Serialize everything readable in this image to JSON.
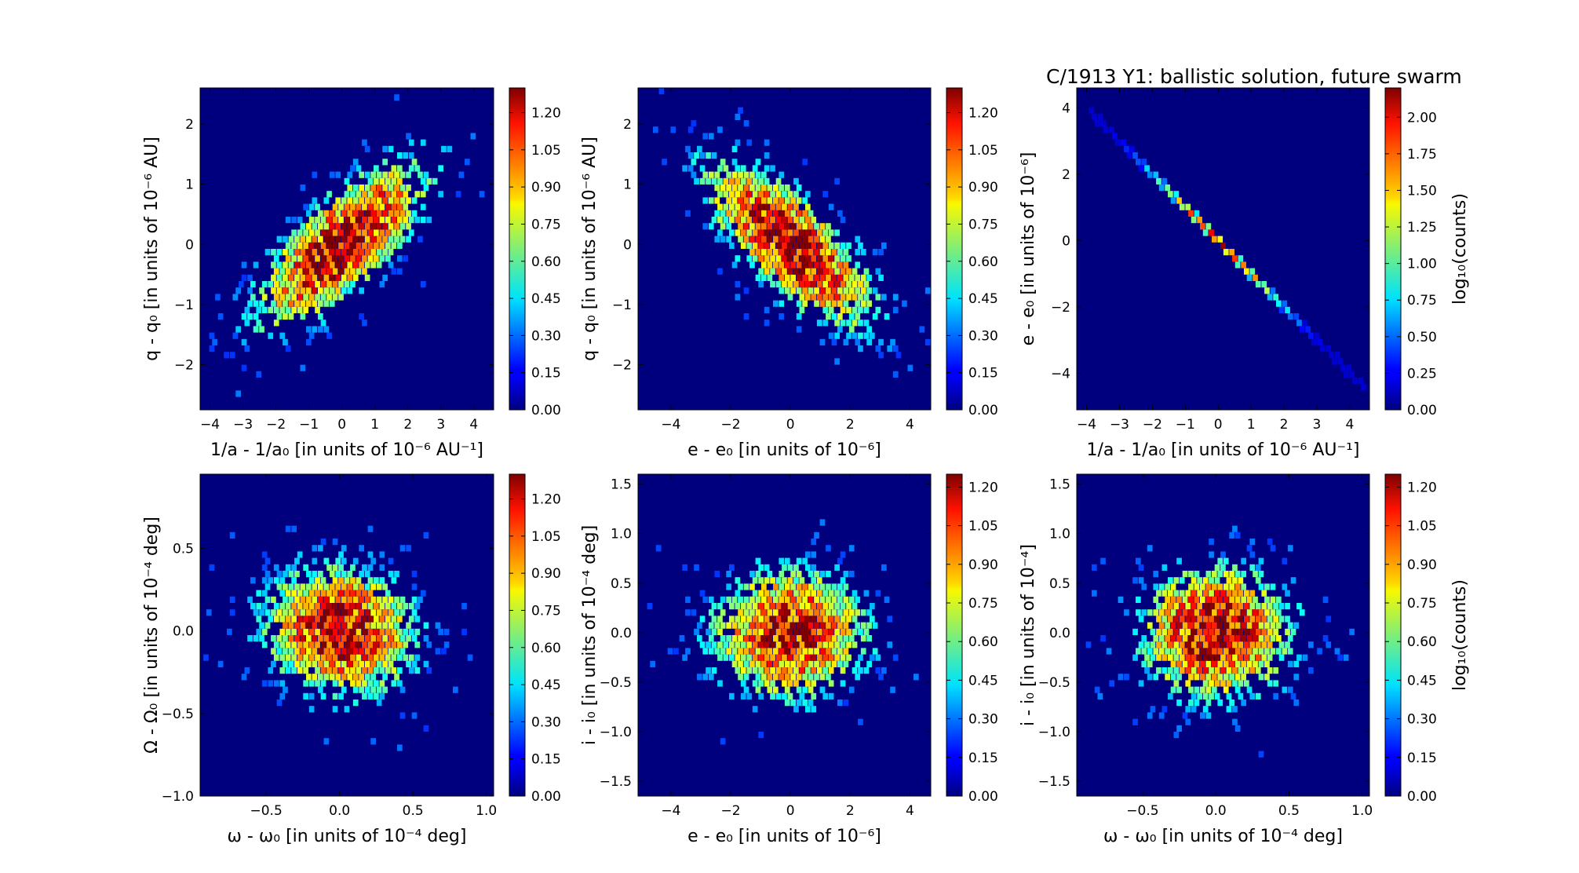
{
  "figure": {
    "title": "C/1913 Y1:  ballistic solution, future swarm"
  },
  "chart_data": [
    {
      "type": "heatmap",
      "subtype": "hexbin",
      "xlabel": "1/a - 1/a₀ [in units of 10⁻⁶ AU⁻¹]",
      "ylabel": "q - q₀ [in units of 10⁻⁶ AU]",
      "xlim": [
        -4.3,
        4.6
      ],
      "ylim": [
        -2.75,
        2.6
      ],
      "xticks": [
        "−4",
        "−3",
        "−2",
        "−1",
        "0",
        "1",
        "2",
        "3",
        "4"
      ],
      "xtick_values": [
        -4,
        -3,
        -2,
        -1,
        0,
        1,
        2,
        3,
        4
      ],
      "yticks": [
        "−2",
        "−1",
        "0",
        "1",
        "2"
      ],
      "ytick_values": [
        -2,
        -1,
        0,
        1,
        2
      ],
      "colorbar": {
        "min": 0.0,
        "max": 1.3,
        "ticks": [
          "0.00",
          "0.15",
          "0.30",
          "0.45",
          "0.60",
          "0.75",
          "0.90",
          "1.05",
          "1.20"
        ],
        "tick_values": [
          0,
          0.15,
          0.3,
          0.45,
          0.6,
          0.75,
          0.9,
          1.05,
          1.2
        ],
        "label": ""
      },
      "distribution": {
        "kind": "bivariate_normal",
        "mean": [
          0,
          0
        ],
        "std": [
          1.5,
          0.8
        ],
        "correlation": 0.75,
        "peak_log10_count": 1.3
      }
    },
    {
      "type": "heatmap",
      "subtype": "hexbin",
      "xlabel": "e - e₀ [in units of 10⁻⁶]",
      "ylabel": "q - q₀ [in units of 10⁻⁶ AU]",
      "xlim": [
        -5.1,
        4.7
      ],
      "ylim": [
        -2.75,
        2.6
      ],
      "xticks": [
        "−4",
        "−2",
        "0",
        "2",
        "4"
      ],
      "xtick_values": [
        -4,
        -2,
        0,
        2,
        4
      ],
      "yticks": [
        "−2",
        "−1",
        "0",
        "1",
        "2"
      ],
      "ytick_values": [
        -2,
        -1,
        0,
        1,
        2
      ],
      "colorbar": {
        "min": 0.0,
        "max": 1.3,
        "ticks": [
          "0.00",
          "0.15",
          "0.30",
          "0.45",
          "0.60",
          "0.75",
          "0.90",
          "1.05",
          "1.20"
        ],
        "tick_values": [
          0,
          0.15,
          0.3,
          0.45,
          0.6,
          0.75,
          0.9,
          1.05,
          1.2
        ],
        "label": ""
      },
      "distribution": {
        "kind": "bivariate_normal",
        "mean": [
          0,
          0
        ],
        "std": [
          1.65,
          0.8
        ],
        "correlation": -0.75,
        "peak_log10_count": 1.3
      }
    },
    {
      "type": "heatmap",
      "subtype": "hexbin",
      "xlabel": "1/a - 1/a₀ [in units of 10⁻⁶ AU⁻¹]",
      "ylabel": "e - e₀ [in units of 10⁻⁶]",
      "xlim": [
        -4.3,
        4.6
      ],
      "ylim": [
        -5.1,
        4.6
      ],
      "xticks": [
        "−4",
        "−3",
        "−2",
        "−1",
        "0",
        "1",
        "2",
        "3",
        "4"
      ],
      "xtick_values": [
        -4,
        -3,
        -2,
        -1,
        0,
        1,
        2,
        3,
        4
      ],
      "yticks": [
        "−4",
        "−2",
        "0",
        "2",
        "4"
      ],
      "ytick_values": [
        -4,
        -2,
        0,
        2,
        4
      ],
      "colorbar": {
        "min": 0.0,
        "max": 2.2,
        "ticks": [
          "0.00",
          "0.25",
          "0.50",
          "0.75",
          "1.00",
          "1.25",
          "1.50",
          "1.75",
          "2.00"
        ],
        "tick_values": [
          0,
          0.25,
          0.5,
          0.75,
          1.0,
          1.25,
          1.5,
          1.75,
          2.0
        ],
        "label": "log₁₀(counts)"
      },
      "distribution": {
        "kind": "linear_relation",
        "slope": -1.0,
        "x_range": [
          -3.9,
          4.5
        ],
        "std": 1.5,
        "peak_log10_count": 2.2
      }
    },
    {
      "type": "heatmap",
      "subtype": "hexbin",
      "xlabel": "ω - ω₀ [in units of 10⁻⁴ deg]",
      "ylabel": "Ω - Ω₀ [in units of 10⁻⁴ deg]",
      "xlim": [
        -0.95,
        1.05
      ],
      "ylim": [
        -1.0,
        0.95
      ],
      "xticks": [
        "−0.5",
        "0.0",
        "0.5",
        "1.0"
      ],
      "xtick_values": [
        -0.5,
        0.0,
        0.5,
        1.0
      ],
      "yticks": [
        "−1.0",
        "−0.5",
        "0.0",
        "0.5"
      ],
      "ytick_values": [
        -1.0,
        -0.5,
        0.0,
        0.5
      ],
      "colorbar": {
        "min": 0.0,
        "max": 1.3,
        "ticks": [
          "0.00",
          "0.15",
          "0.30",
          "0.45",
          "0.60",
          "0.75",
          "0.90",
          "1.05",
          "1.20"
        ],
        "tick_values": [
          0,
          0.15,
          0.3,
          0.45,
          0.6,
          0.75,
          0.9,
          1.05,
          1.2
        ],
        "label": ""
      },
      "distribution": {
        "kind": "bivariate_normal",
        "mean": [
          0,
          0
        ],
        "std": [
          0.3,
          0.23
        ],
        "correlation": -0.1,
        "peak_log10_count": 1.25
      }
    },
    {
      "type": "heatmap",
      "subtype": "hexbin",
      "xlabel": "e - e₀ [in units of 10⁻⁶]",
      "ylabel": "i - i₀ [in units of 10⁻⁴ deg]",
      "xlim": [
        -5.1,
        4.7
      ],
      "ylim": [
        -1.65,
        1.6
      ],
      "xticks": [
        "−4",
        "−2",
        "0",
        "2",
        "4"
      ],
      "xtick_values": [
        -4,
        -2,
        0,
        2,
        4
      ],
      "yticks": [
        "−1.5",
        "−1.0",
        "−0.5",
        "0.0",
        "0.5",
        "1.0",
        "1.5"
      ],
      "ytick_values": [
        -1.5,
        -1.0,
        -0.5,
        0.0,
        0.5,
        1.0,
        1.5
      ],
      "colorbar": {
        "min": 0.0,
        "max": 1.25,
        "ticks": [
          "0.00",
          "0.15",
          "0.30",
          "0.45",
          "0.60",
          "0.75",
          "0.90",
          "1.05",
          "1.20"
        ],
        "tick_values": [
          0,
          0.15,
          0.3,
          0.45,
          0.6,
          0.75,
          0.9,
          1.05,
          1.2
        ],
        "label": ""
      },
      "distribution": {
        "kind": "bivariate_normal",
        "mean": [
          0,
          0
        ],
        "std": [
          1.5,
          0.38
        ],
        "correlation": 0.0,
        "peak_log10_count": 1.2
      }
    },
    {
      "type": "heatmap",
      "subtype": "hexbin",
      "xlabel": "ω - ω₀ [in units of 10⁻⁴ deg]",
      "ylabel": "i - i₀ [in units of 10⁻⁴]",
      "xlim": [
        -0.95,
        1.05
      ],
      "ylim": [
        -1.65,
        1.6
      ],
      "xticks": [
        "−0.5",
        "0.0",
        "0.5",
        "1.0"
      ],
      "xtick_values": [
        -0.5,
        0.0,
        0.5,
        1.0
      ],
      "yticks": [
        "−1.5",
        "−1.0",
        "−0.5",
        "0.0",
        "0.5",
        "1.0",
        "1.5"
      ],
      "ytick_values": [
        -1.5,
        -1.0,
        -0.5,
        0.0,
        0.5,
        1.0,
        1.5
      ],
      "colorbar": {
        "min": 0.0,
        "max": 1.25,
        "ticks": [
          "0.00",
          "0.15",
          "0.30",
          "0.45",
          "0.60",
          "0.75",
          "0.90",
          "1.05",
          "1.20"
        ],
        "tick_values": [
          0,
          0.15,
          0.3,
          0.45,
          0.6,
          0.75,
          0.9,
          1.05,
          1.2
        ],
        "label": "log₁₀(counts)"
      },
      "distribution": {
        "kind": "bivariate_normal",
        "mean": [
          0,
          0
        ],
        "std": [
          0.3,
          0.38
        ],
        "correlation": 0.0,
        "peak_log10_count": 1.25
      }
    }
  ],
  "colors": {
    "background": "#00007f",
    "colormap": "jet"
  }
}
